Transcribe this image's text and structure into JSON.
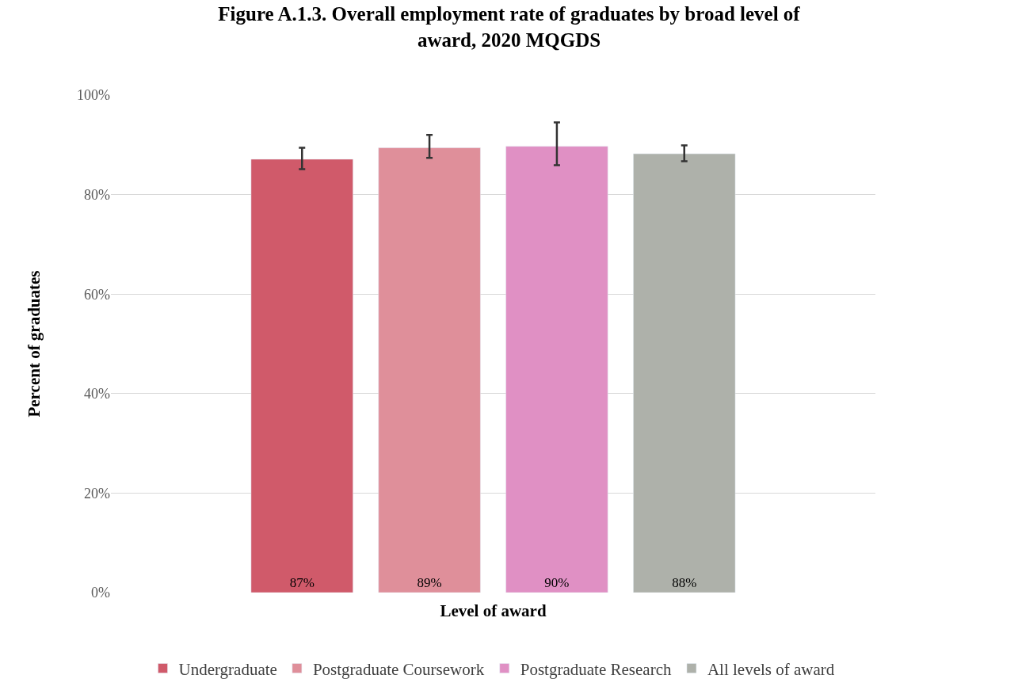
{
  "chart_data": {
    "type": "bar",
    "title": "Figure A.1.3. Overall employment rate of graduates by broad level of award, 2020 MQGDS",
    "xlabel": "Level of award",
    "ylabel": "Percent of graduates",
    "categories": [
      null,
      null,
      null,
      null
    ],
    "series": [
      {
        "name": "Undergraduate",
        "color": "#d05a6a",
        "values": [
          87.1,
          null,
          null,
          null
        ],
        "errors": [
          [
            85.1,
            89.4
          ],
          null,
          null,
          null
        ],
        "value_labels": [
          "87%",
          null,
          null,
          null
        ]
      },
      {
        "name": "Postgraduate Coursework",
        "color": "#df8f9a",
        "values": [
          null,
          89.4,
          null,
          null
        ],
        "errors": [
          null,
          [
            87.4,
            92.0
          ],
          null,
          null
        ],
        "value_labels": [
          null,
          "89%",
          null,
          null
        ]
      },
      {
        "name": "Postgraduate Research",
        "color": "#e090c4",
        "values": [
          null,
          null,
          89.7,
          null
        ],
        "errors": [
          null,
          null,
          [
            85.9,
            94.5
          ],
          null
        ],
        "value_labels": [
          null,
          null,
          "90%",
          null
        ]
      },
      {
        "name": "All levels of award",
        "color": "#aeb1aa",
        "values": [
          null,
          null,
          null,
          88.2
        ],
        "errors": [
          null,
          null,
          null,
          [
            86.7,
            89.9
          ]
        ],
        "value_labels": [
          null,
          null,
          null,
          "88%"
        ]
      }
    ],
    "ylim": [
      0,
      100
    ],
    "yticks": [
      {
        "value": 0,
        "label": "0%"
      },
      {
        "value": 20,
        "label": "20%"
      },
      {
        "value": 40,
        "label": "40%"
      },
      {
        "value": 60,
        "label": "60%"
      },
      {
        "value": 80,
        "label": "80%"
      },
      {
        "value": 100,
        "label": "100%"
      }
    ],
    "grid": "y",
    "legend": "bottom",
    "tick_labels": "y"
  }
}
